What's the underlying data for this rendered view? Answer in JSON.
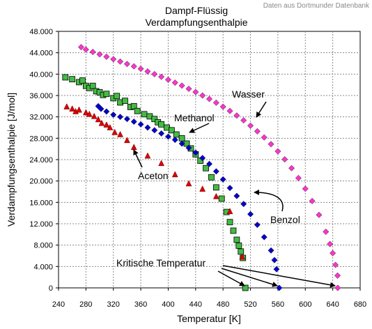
{
  "chart_data": {
    "type": "scatter",
    "title": "Dampf-Flüssig",
    "subtitle": "Verdampfungsenthalpie",
    "source_note": "Daten aus Dortmunder Datenbank",
    "xlabel": "Temperatur [K]",
    "ylabel": "Verdampfungsenthalpie [J/mol]",
    "xlim": [
      240,
      680
    ],
    "ylim": [
      0,
      48000
    ],
    "x_ticks": [
      "240",
      "280",
      "320",
      "360",
      "400",
      "440",
      "480",
      "520",
      "560",
      "600",
      "640",
      "680"
    ],
    "y_ticks": [
      "0",
      "4.000",
      "8.000",
      "12.000",
      "16.000",
      "20.000",
      "24.000",
      "28.000",
      "32.000",
      "36.000",
      "40.000",
      "44.000",
      "48.000"
    ],
    "grid": true,
    "series": [
      {
        "name": "Wasser",
        "marker": "diamond",
        "color": "#ff33cc",
        "points": [
          [
            273,
            45050
          ],
          [
            280,
            44600
          ],
          [
            290,
            44150
          ],
          [
            300,
            43700
          ],
          [
            310,
            43250
          ],
          [
            320,
            42800
          ],
          [
            330,
            42350
          ],
          [
            340,
            41900
          ],
          [
            350,
            41450
          ],
          [
            360,
            41000
          ],
          [
            370,
            40500
          ],
          [
            380,
            40000
          ],
          [
            390,
            39500
          ],
          [
            400,
            38950
          ],
          [
            410,
            38400
          ],
          [
            420,
            37850
          ],
          [
            430,
            37250
          ],
          [
            440,
            36650
          ],
          [
            450,
            36000
          ],
          [
            460,
            35350
          ],
          [
            470,
            34650
          ],
          [
            480,
            33900
          ],
          [
            490,
            33100
          ],
          [
            500,
            32250
          ],
          [
            510,
            31350
          ],
          [
            520,
            30350
          ],
          [
            530,
            29300
          ],
          [
            540,
            28150
          ],
          [
            550,
            26900
          ],
          [
            560,
            25550
          ],
          [
            570,
            24050
          ],
          [
            580,
            22400
          ],
          [
            590,
            20550
          ],
          [
            600,
            18550
          ],
          [
            610,
            16250
          ],
          [
            620,
            13650
          ],
          [
            630,
            10500
          ],
          [
            636,
            8200
          ],
          [
            640,
            6500
          ],
          [
            644,
            4300
          ],
          [
            647,
            2300
          ],
          [
            647.3,
            0
          ]
        ]
      },
      {
        "name": "Methanol",
        "marker": "square",
        "color": "#44bb44",
        "points": [
          [
            250,
            39400
          ],
          [
            260,
            39050
          ],
          [
            270,
            38500
          ],
          [
            275,
            38800
          ],
          [
            280,
            37800
          ],
          [
            285,
            37400
          ],
          [
            290,
            37800
          ],
          [
            295,
            36800
          ],
          [
            300,
            36600
          ],
          [
            305,
            36100
          ],
          [
            310,
            36300
          ],
          [
            320,
            35500
          ],
          [
            325,
            35900
          ],
          [
            330,
            34700
          ],
          [
            337,
            35000
          ],
          [
            345,
            33850
          ],
          [
            350,
            34000
          ],
          [
            355,
            33100
          ],
          [
            365,
            32500
          ],
          [
            373,
            32100
          ],
          [
            380,
            31600
          ],
          [
            385,
            31000
          ],
          [
            390,
            30600
          ],
          [
            398,
            30000
          ],
          [
            405,
            29500
          ],
          [
            412,
            28700
          ],
          [
            420,
            28000
          ],
          [
            427,
            27000
          ],
          [
            433,
            26100
          ],
          [
            440,
            25000
          ],
          [
            447,
            23800
          ],
          [
            455,
            22400
          ],
          [
            463,
            20700
          ],
          [
            470,
            18800
          ],
          [
            478,
            16700
          ],
          [
            485,
            14200
          ],
          [
            490,
            12300
          ],
          [
            495,
            10700
          ],
          [
            500,
            9000
          ],
          [
            503,
            7900
          ],
          [
            506,
            6800
          ],
          [
            509,
            5600
          ],
          [
            512.5,
            0
          ]
        ]
      },
      {
        "name": "Benzol",
        "marker": "diamond",
        "color": "#0000cc",
        "points": [
          [
            298,
            34000
          ],
          [
            302,
            33500
          ],
          [
            310,
            33000
          ],
          [
            320,
            32400
          ],
          [
            330,
            32000
          ],
          [
            340,
            31600
          ],
          [
            350,
            31100
          ],
          [
            360,
            30600
          ],
          [
            370,
            30000
          ],
          [
            380,
            29500
          ],
          [
            390,
            28900
          ],
          [
            400,
            28300
          ],
          [
            410,
            27700
          ],
          [
            420,
            27000
          ],
          [
            430,
            26200
          ],
          [
            440,
            25300
          ],
          [
            450,
            24300
          ],
          [
            460,
            23200
          ],
          [
            470,
            21800
          ],
          [
            480,
            20300
          ],
          [
            490,
            18700
          ],
          [
            500,
            17200
          ],
          [
            510,
            15700
          ],
          [
            520,
            13800
          ],
          [
            530,
            11800
          ],
          [
            540,
            9500
          ],
          [
            550,
            7000
          ],
          [
            555,
            5200
          ],
          [
            558,
            3500
          ],
          [
            562,
            0
          ]
        ]
      },
      {
        "name": "Aceton",
        "marker": "triangle",
        "color": "#dd0000",
        "points": [
          [
            252,
            33900
          ],
          [
            260,
            33500
          ],
          [
            265,
            33000
          ],
          [
            270,
            33300
          ],
          [
            280,
            32800
          ],
          [
            285,
            32500
          ],
          [
            292,
            32100
          ],
          [
            298,
            31500
          ],
          [
            303,
            30800
          ],
          [
            310,
            30500
          ],
          [
            315,
            30000
          ],
          [
            322,
            29100
          ],
          [
            330,
            28700
          ],
          [
            340,
            27600
          ],
          [
            350,
            26300
          ],
          [
            370,
            24700
          ],
          [
            390,
            23300
          ],
          [
            410,
            21200
          ],
          [
            430,
            19500
          ],
          [
            450,
            18500
          ],
          [
            470,
            17100
          ],
          [
            490,
            14300
          ],
          [
            508,
            5800
          ]
        ]
      }
    ],
    "annotations": [
      {
        "label": "Wasser"
      },
      {
        "label": "Methanol"
      },
      {
        "label": "Aceton"
      },
      {
        "label": "Benzol"
      },
      {
        "label": "Kritische Temperatur"
      }
    ]
  }
}
